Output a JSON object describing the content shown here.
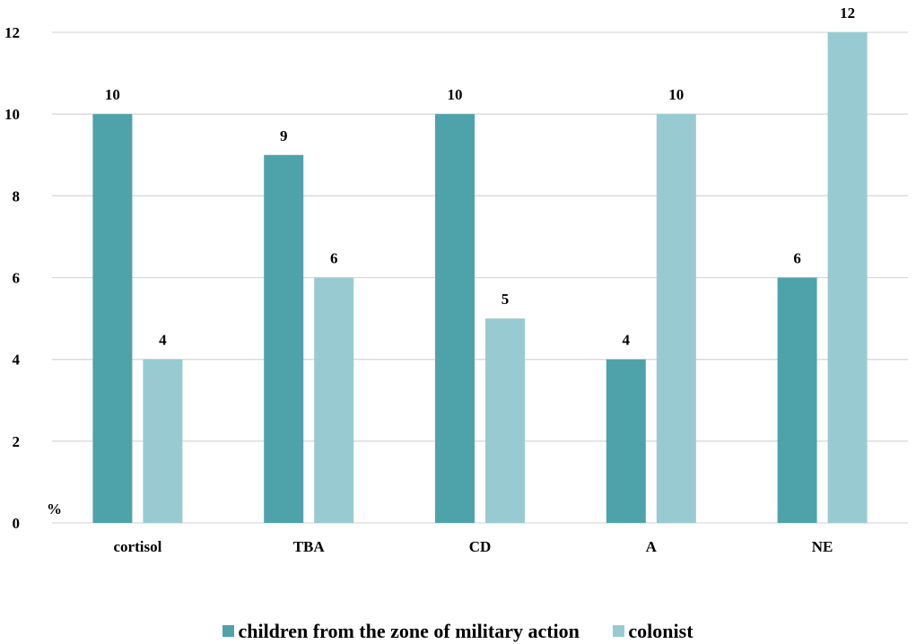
{
  "chart_data": {
    "type": "bar",
    "categories": [
      "cortisol",
      "TBA",
      "CD",
      "A",
      "NE"
    ],
    "series": [
      {
        "name": "children from the zone of military action",
        "values": [
          10,
          9,
          10,
          4,
          6
        ],
        "color": "#4ea3ab"
      },
      {
        "name": "colonist",
        "values": [
          4,
          6,
          5,
          10,
          12
        ],
        "color": "#98cbd1"
      }
    ],
    "ylabel": "%",
    "ylim": [
      0,
      12
    ],
    "yticks": [
      0,
      2,
      4,
      6,
      8,
      10,
      12
    ],
    "grid": true,
    "legend_position": "bottom"
  }
}
